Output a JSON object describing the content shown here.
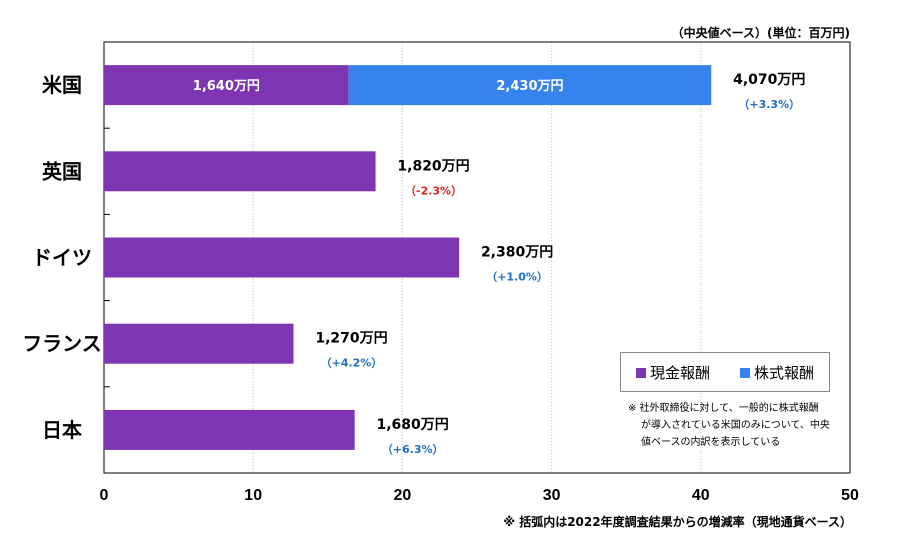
{
  "chart_data": {
    "type": "bar",
    "orientation": "horizontal",
    "stacked": true,
    "unit_note": "（中央値ベース）(単位：百万円)",
    "categories": [
      "米国",
      "英国",
      "ドイツ",
      "フランス",
      "日本"
    ],
    "series": [
      {
        "name": "現金報酬",
        "color": "#7d35b2",
        "values": [
          16.4,
          18.2,
          23.8,
          12.7,
          16.8
        ],
        "labels": [
          "1,640万円",
          "",
          "",
          "",
          ""
        ]
      },
      {
        "name": "株式報酬",
        "color": "#3584ee",
        "values": [
          24.3,
          0,
          0,
          0,
          0
        ],
        "labels": [
          "2,430万円",
          "",
          "",
          "",
          ""
        ]
      }
    ],
    "totals": [
      "4,070万円",
      "1,820万円",
      "2,380万円",
      "1,270万円",
      "1,680万円"
    ],
    "changes": [
      "（+3.3%）",
      "（-2.3%）",
      "（+1.0%）",
      "（+4.2%）",
      "（+6.3%）"
    ],
    "change_colors": [
      "#1f6fc4",
      "#e02020",
      "#1f6fc4",
      "#1f6fc4",
      "#1f6fc4"
    ],
    "xlim": [
      0,
      50
    ],
    "xticks": [
      "0",
      "10",
      "20",
      "30",
      "40",
      "50"
    ],
    "grid": "vertical dotted",
    "legend_position": "bottom-right",
    "note": [
      "※ 社外取締役に対して、一般的に株式報酬",
      "が導入されている米国のみについて、中央",
      "値ベースの内訳を表示している"
    ],
    "footnote": "※ 括弧内は2022年度調査結果からの増減率（現地通貨ベース）"
  }
}
